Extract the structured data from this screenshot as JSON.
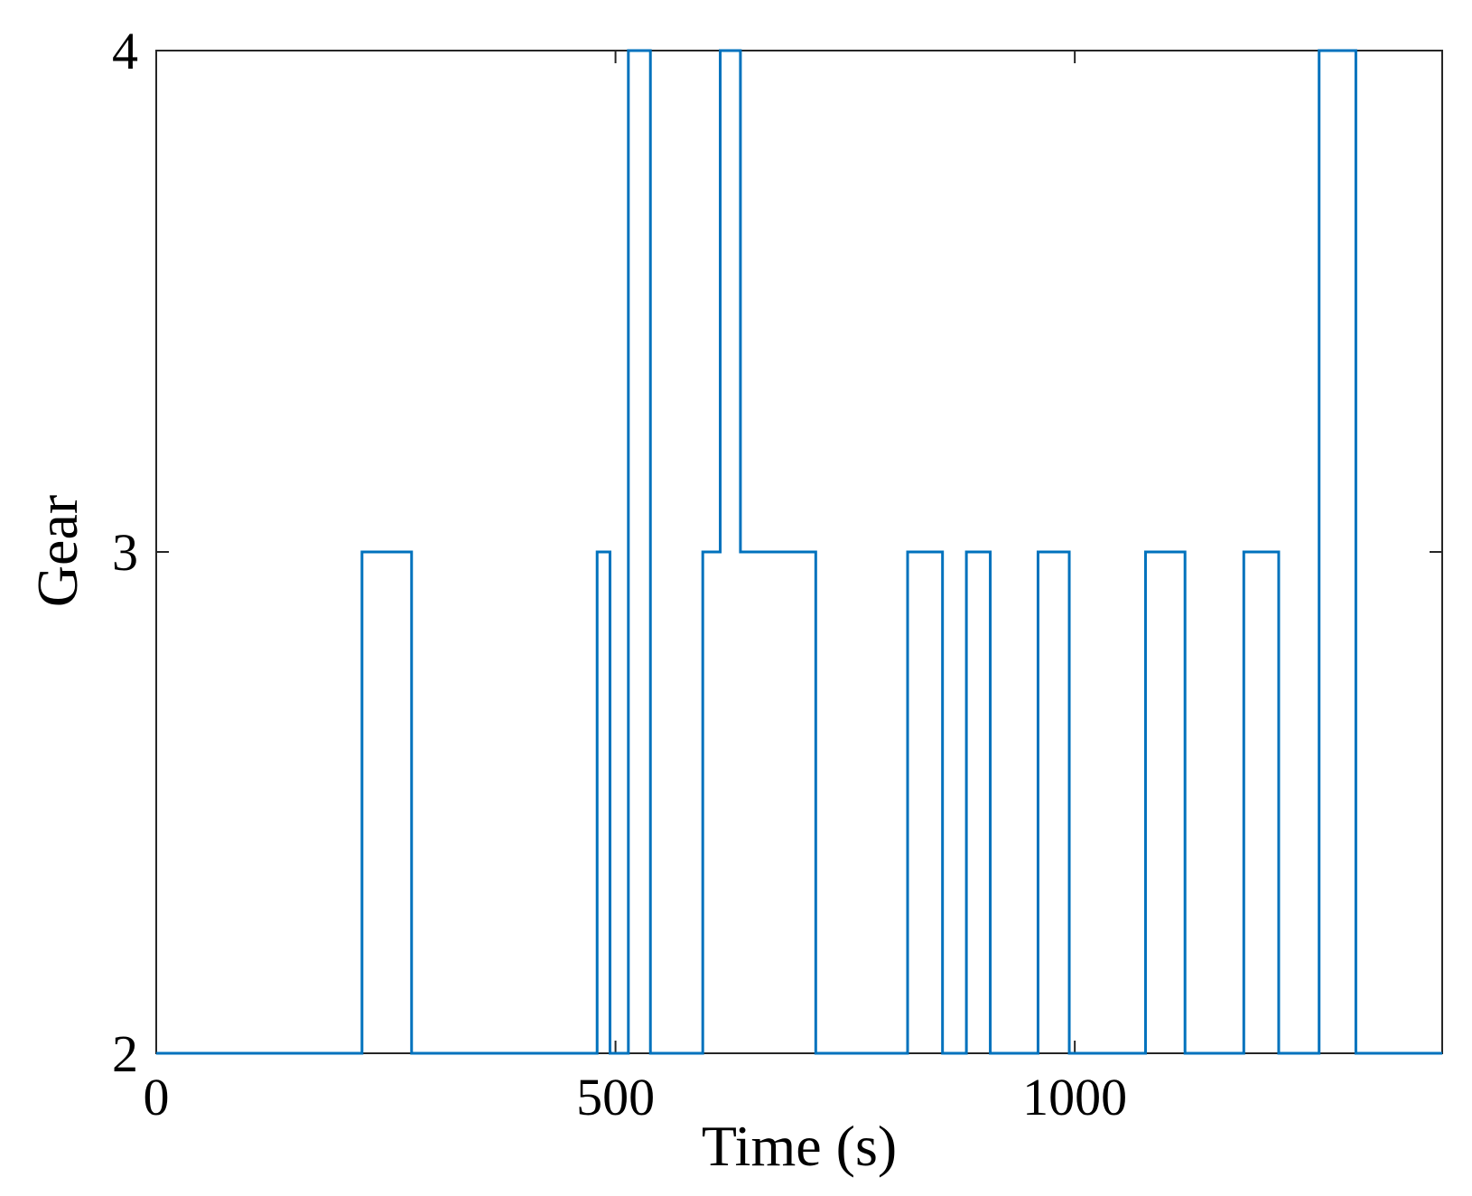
{
  "chart_data": {
    "type": "line",
    "title": "",
    "xlabel": "Time (s)",
    "ylabel": "Gear",
    "xlim": [
      0,
      1400
    ],
    "ylim": [
      2,
      4
    ],
    "grid": false,
    "x_ticks": [
      0,
      500,
      1000
    ],
    "x_tick_labels": [
      "0",
      "500",
      "1000"
    ],
    "y_ticks": [
      2,
      3,
      4
    ],
    "y_tick_labels": [
      "2",
      "3",
      "4"
    ],
    "line_color": "#0072BD",
    "series": [
      {
        "step": "post",
        "x": [
          0,
          224,
          278,
          480,
          494,
          514,
          538,
          595,
          614,
          636,
          718,
          818,
          856,
          882,
          908,
          960,
          994,
          1077,
          1120,
          1184,
          1222,
          1266,
          1306,
          1400
        ],
        "y": [
          2,
          3,
          2,
          3,
          2,
          4,
          2,
          3,
          4,
          3,
          2,
          3,
          2,
          3,
          2,
          3,
          2,
          3,
          2,
          3,
          2,
          4,
          2,
          2
        ]
      }
    ]
  }
}
